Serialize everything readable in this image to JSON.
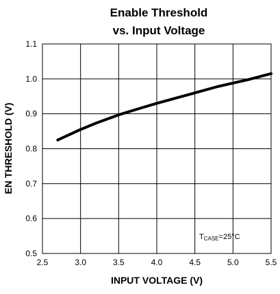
{
  "chart_data": {
    "type": "line",
    "title_line1": "Enable Threshold",
    "title_line2": "vs. Input Voltage",
    "xlabel": "INPUT VOLTAGE (V)",
    "ylabel": "EN THRESHOLD (V)",
    "xlim": [
      2.5,
      5.5
    ],
    "ylim": [
      0.5,
      1.1
    ],
    "xticks": [
      "2.5",
      "3.0",
      "3.5",
      "4.0",
      "4.5",
      "5.0",
      "5.5"
    ],
    "yticks": [
      "0.5",
      "0.6",
      "0.7",
      "0.8",
      "0.9",
      "1.0",
      "1.1"
    ],
    "grid": true,
    "annotation": {
      "main": "T",
      "sub": "CASE",
      "rest": "=25°C"
    },
    "series": [
      {
        "x": [
          2.7,
          2.8,
          3.0,
          3.2,
          3.5,
          3.8,
          4.0,
          4.3,
          4.5,
          4.8,
          5.0,
          5.2,
          5.5
        ],
        "y": [
          0.825,
          0.835,
          0.855,
          0.873,
          0.897,
          0.917,
          0.93,
          0.948,
          0.96,
          0.978,
          0.988,
          0.998,
          1.015
        ]
      }
    ]
  }
}
